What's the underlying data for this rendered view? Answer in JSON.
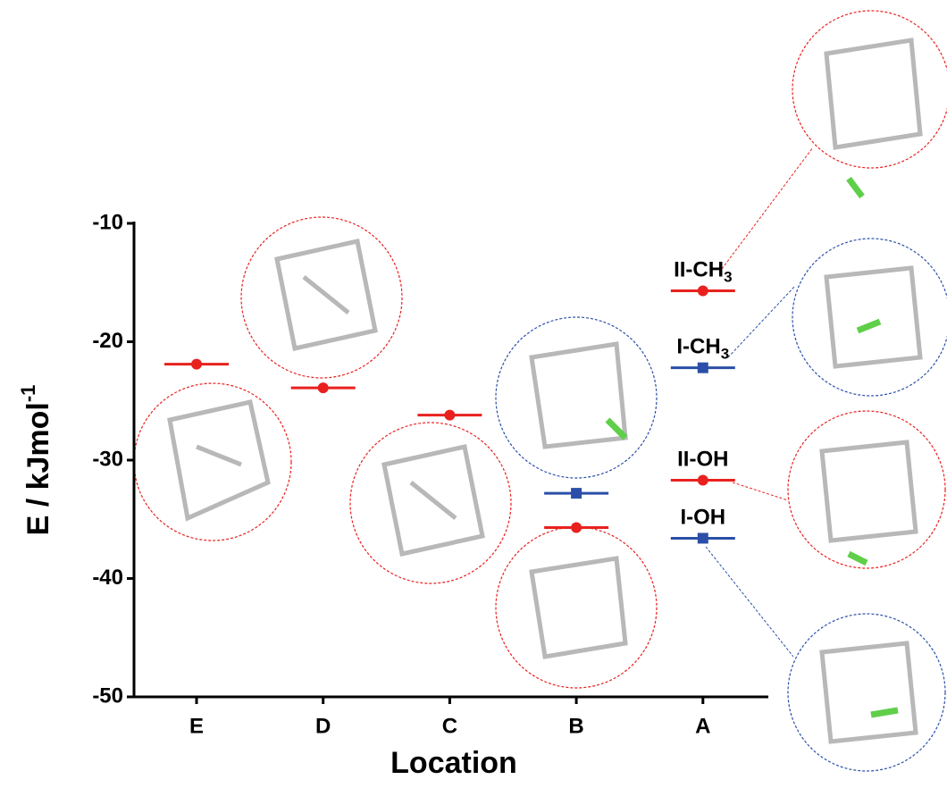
{
  "chart_data": {
    "type": "level",
    "x_label": "Location",
    "y_label": {
      "text": "E / kJmol",
      "sup": "-1"
    },
    "categories": [
      "E",
      "D",
      "C",
      "B",
      "A"
    ],
    "ylim": [
      -50,
      -10
    ],
    "yticks": [
      -10,
      -20,
      -30,
      -40,
      -50
    ],
    "series": [
      {
        "color": "#e8211f",
        "marker": "circle",
        "values": [
          -21.9,
          -23.9,
          -26.2,
          -35.7,
          null
        ]
      },
      {
        "color": "#2b4fa8",
        "marker": "square",
        "values": [
          null,
          null,
          null,
          -32.8,
          null
        ]
      }
    ],
    "a_levels": [
      {
        "label": "II-CH",
        "sub": "3",
        "value": -15.7,
        "color": "#e8211f",
        "marker": "circle"
      },
      {
        "label": "I-CH",
        "sub": "3",
        "value": -22.2,
        "color": "#2b4fa8",
        "marker": "square"
      },
      {
        "label": "II-OH",
        "value": -31.7,
        "color": "#e8211f",
        "marker": "circle"
      },
      {
        "label": "I-OH",
        "value": -36.6,
        "color": "#2b4fa8",
        "marker": "square"
      }
    ]
  }
}
